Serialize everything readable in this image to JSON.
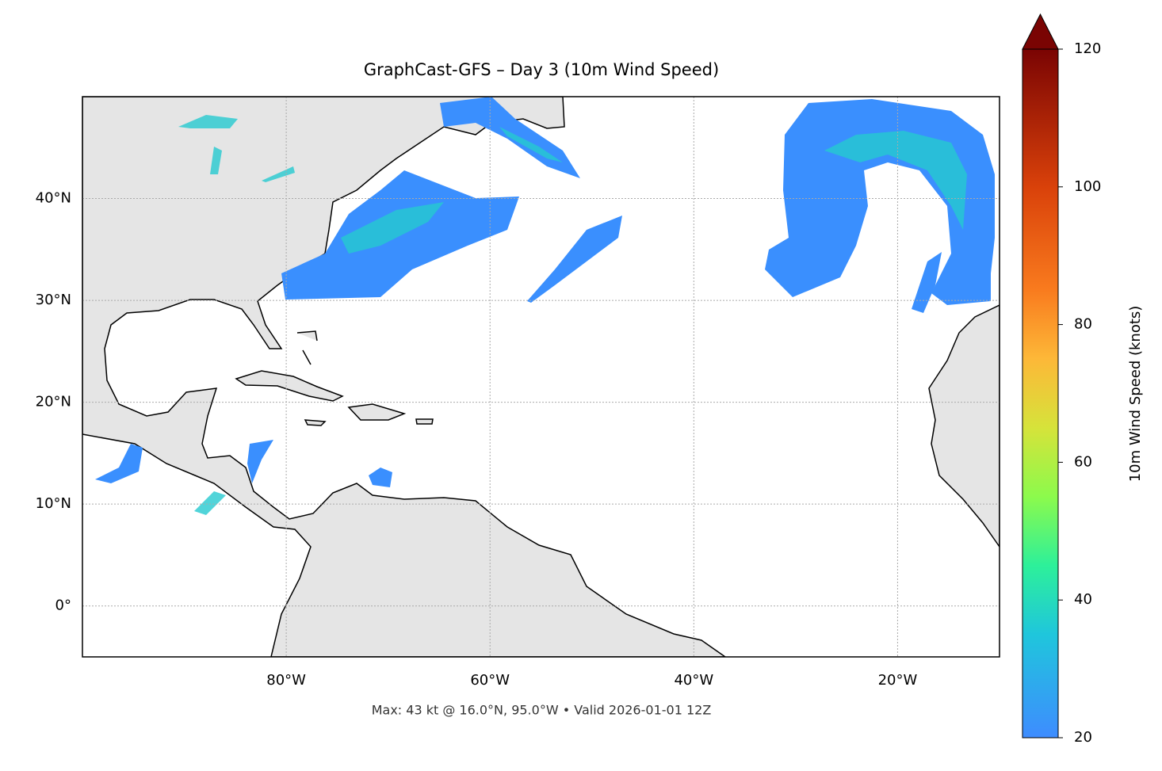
{
  "chart_data": {
    "type": "map",
    "title": "GraphCast-GFS – Day 3 (10m Wind Speed)",
    "annotation": "Max: 43 kt @ 16.0°N, 95.0°W • Valid 2026-01-01 12Z",
    "xlim": [
      -100,
      -10
    ],
    "ylim": [
      -5,
      50
    ],
    "xticks": [
      {
        "value": -80,
        "label": "80°W"
      },
      {
        "value": -60,
        "label": "60°W"
      },
      {
        "value": -40,
        "label": "40°W"
      },
      {
        "value": -20,
        "label": "20°W"
      }
    ],
    "yticks": [
      {
        "value": 0,
        "label": "0°"
      },
      {
        "value": 10,
        "label": "10°N"
      },
      {
        "value": 20,
        "label": "20°N"
      },
      {
        "value": 30,
        "label": "30°N"
      },
      {
        "value": 40,
        "label": "40°N"
      }
    ],
    "grid": true,
    "colorbar": {
      "label": "10m Wind Speed (knots)",
      "lim": [
        20,
        120
      ],
      "ticks": [
        20,
        40,
        60,
        80,
        100,
        120
      ],
      "extend": "max"
    }
  }
}
